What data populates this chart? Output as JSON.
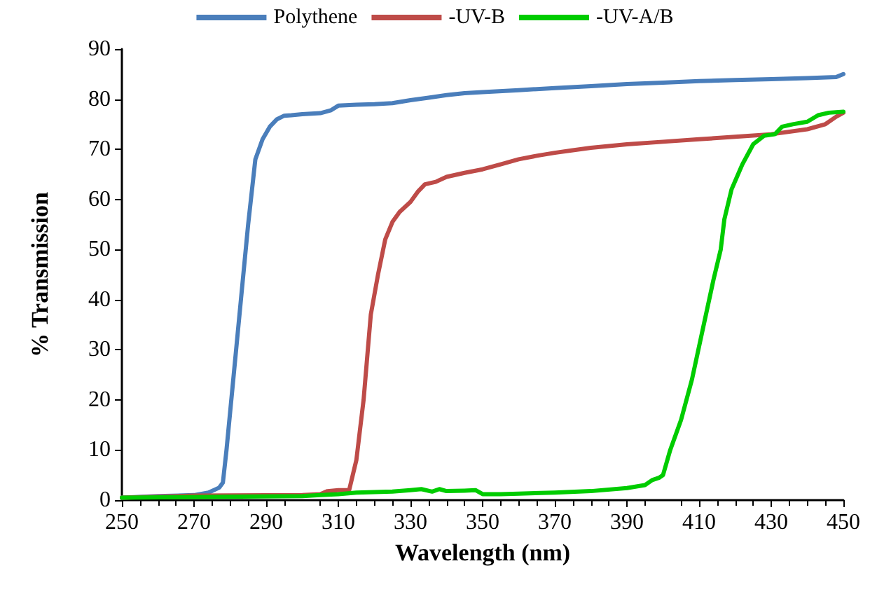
{
  "chart_data": {
    "type": "line",
    "xlabel": "Wavelength (nm)",
    "ylabel": "% Transmission",
    "xlim": [
      250,
      450
    ],
    "xticks": [
      250,
      270,
      290,
      310,
      330,
      350,
      370,
      390,
      410,
      430,
      450
    ],
    "ylim": [
      0,
      90
    ],
    "yticks": [
      0,
      10,
      20,
      30,
      40,
      50,
      60,
      70,
      80,
      90
    ],
    "grid": false,
    "legend": "top",
    "marker": "none",
    "line_style": "solid",
    "series": [
      {
        "name": "Polythene",
        "color": "#4a7ebb",
        "x": [
          250,
          260,
          270,
          274,
          277,
          278,
          279,
          281,
          283,
          285,
          287,
          289,
          291,
          293,
          295,
          297,
          300,
          305,
          308,
          310,
          315,
          320,
          325,
          330,
          335,
          340,
          345,
          350,
          360,
          370,
          380,
          390,
          400,
          410,
          420,
          430,
          440,
          448,
          450
        ],
        "values": [
          0.5,
          0.8,
          1,
          1.5,
          2.5,
          3.5,
          10,
          25,
          40,
          55,
          68,
          72,
          74.5,
          76,
          76.7,
          76.8,
          77,
          77.2,
          77.8,
          78.7,
          78.9,
          79,
          79.2,
          79.8,
          80.3,
          80.8,
          81.2,
          81.4,
          81.8,
          82.2,
          82.6,
          83,
          83.3,
          83.6,
          83.8,
          84,
          84.2,
          84.4,
          85
        ]
      },
      {
        "name": "-UV-B",
        "color": "#be4b48",
        "x": [
          250,
          270,
          300,
          305,
          307,
          310,
          313,
          315,
          317,
          319,
          321,
          323,
          325,
          327,
          330,
          332,
          334,
          337,
          340,
          345,
          350,
          355,
          360,
          365,
          370,
          375,
          380,
          390,
          400,
          410,
          420,
          430,
          440,
          445,
          448,
          450
        ],
        "values": [
          0.5,
          0.9,
          1,
          1.2,
          1.8,
          2,
          2,
          8,
          20,
          37,
          45,
          52,
          55.5,
          57.5,
          59.5,
          61.5,
          63,
          63.5,
          64.5,
          65.3,
          66,
          67,
          68,
          68.7,
          69.3,
          69.8,
          70.3,
          71,
          71.5,
          72,
          72.5,
          73,
          74,
          75,
          76.5,
          77.3
        ]
      },
      {
        "name": "-UV-A/B",
        "color": "#00cc00",
        "x": [
          250,
          300,
          305,
          310,
          315,
          320,
          325,
          330,
          333,
          336,
          338,
          340,
          345,
          348,
          350,
          355,
          360,
          370,
          380,
          390,
          395,
          397,
          399,
          400,
          402,
          405,
          408,
          411,
          414,
          416,
          417,
          419,
          422,
          425,
          428,
          431,
          433,
          436,
          440,
          443,
          446,
          450
        ],
        "values": [
          0.5,
          0.8,
          1,
          1.2,
          1.5,
          1.6,
          1.7,
          2,
          2.2,
          1.7,
          2.2,
          1.8,
          1.9,
          2,
          1.2,
          1.2,
          1.3,
          1.5,
          1.8,
          2.4,
          3,
          4,
          4.5,
          5,
          10,
          16,
          24,
          34,
          44,
          50,
          56,
          62,
          67,
          71,
          72.7,
          73,
          74.5,
          75,
          75.5,
          76.8,
          77.3,
          77.5
        ]
      }
    ]
  }
}
